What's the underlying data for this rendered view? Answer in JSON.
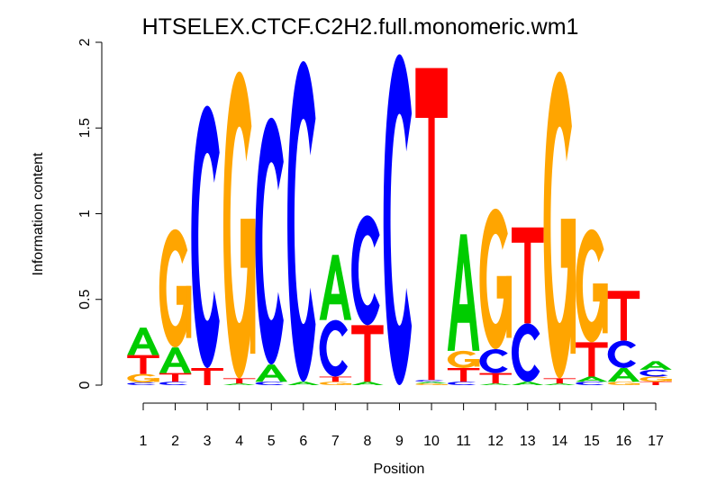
{
  "chart_data": {
    "type": "sequence-logo",
    "title": "HTSELEX.CTCF.C2H2.full.monomeric.wm1",
    "xlabel": "Position",
    "ylabel": "Information content",
    "ylim": [
      0,
      2
    ],
    "yticks": [
      "0",
      "0.5",
      "1",
      "1.5",
      "2"
    ],
    "xticks": [
      "1",
      "2",
      "3",
      "4",
      "5",
      "6",
      "7",
      "8",
      "9",
      "10",
      "11",
      "12",
      "13",
      "14",
      "15",
      "16",
      "17"
    ],
    "colors": {
      "A": "#00cc00",
      "C": "#0000ff",
      "G": "#ffa500",
      "T": "#ff0000"
    },
    "positions": [
      [
        [
          "C",
          0.015
        ],
        [
          "G",
          0.05
        ],
        [
          "T",
          0.11
        ],
        [
          "A",
          0.16
        ]
      ],
      [
        [
          "C",
          0.02
        ],
        [
          "T",
          0.05
        ],
        [
          "A",
          0.15
        ],
        [
          "G",
          0.69
        ]
      ],
      [
        [
          "T",
          0.1
        ],
        [
          "C",
          1.53
        ]
      ],
      [
        [
          "A",
          0.01
        ],
        [
          "T",
          0.03
        ],
        [
          "G",
          1.79
        ]
      ],
      [
        [
          "C",
          0.02
        ],
        [
          "A",
          0.1
        ],
        [
          "C",
          1.44
        ]
      ],
      [
        [
          "A",
          0.02
        ],
        [
          "C",
          1.87
        ]
      ],
      [
        [
          "G",
          0.02
        ],
        [
          "T",
          0.03
        ],
        [
          "C",
          0.33
        ],
        [
          "A",
          0.38
        ]
      ],
      [
        [
          "A",
          0.02
        ],
        [
          "T",
          0.33
        ],
        [
          "C",
          0.64
        ]
      ],
      [
        [
          "C",
          1.93
        ]
      ],
      [
        [
          "G",
          0.01
        ],
        [
          "A",
          0.01
        ],
        [
          "C",
          0.01
        ],
        [
          "T",
          1.82
        ]
      ],
      [
        [
          "C",
          0.02
        ],
        [
          "T",
          0.08
        ],
        [
          "G",
          0.1
        ],
        [
          "A",
          0.68
        ]
      ],
      [
        [
          "A",
          0.01
        ],
        [
          "T",
          0.06
        ],
        [
          "C",
          0.14
        ],
        [
          "G",
          0.82
        ]
      ],
      [
        [
          "A",
          0.02
        ],
        [
          "C",
          0.34
        ],
        [
          "T",
          0.56
        ]
      ],
      [
        [
          "A",
          0.01
        ],
        [
          "T",
          0.03
        ],
        [
          "G",
          1.79
        ]
      ],
      [
        [
          "C",
          0.02
        ],
        [
          "A",
          0.03
        ],
        [
          "T",
          0.2
        ],
        [
          "G",
          0.66
        ]
      ],
      [
        [
          "G",
          0.02
        ],
        [
          "A",
          0.08
        ],
        [
          "C",
          0.16
        ],
        [
          "T",
          0.29
        ]
      ],
      [
        [
          "T",
          0.02
        ],
        [
          "G",
          0.03
        ],
        [
          "C",
          0.04
        ],
        [
          "A",
          0.05
        ]
      ]
    ]
  }
}
